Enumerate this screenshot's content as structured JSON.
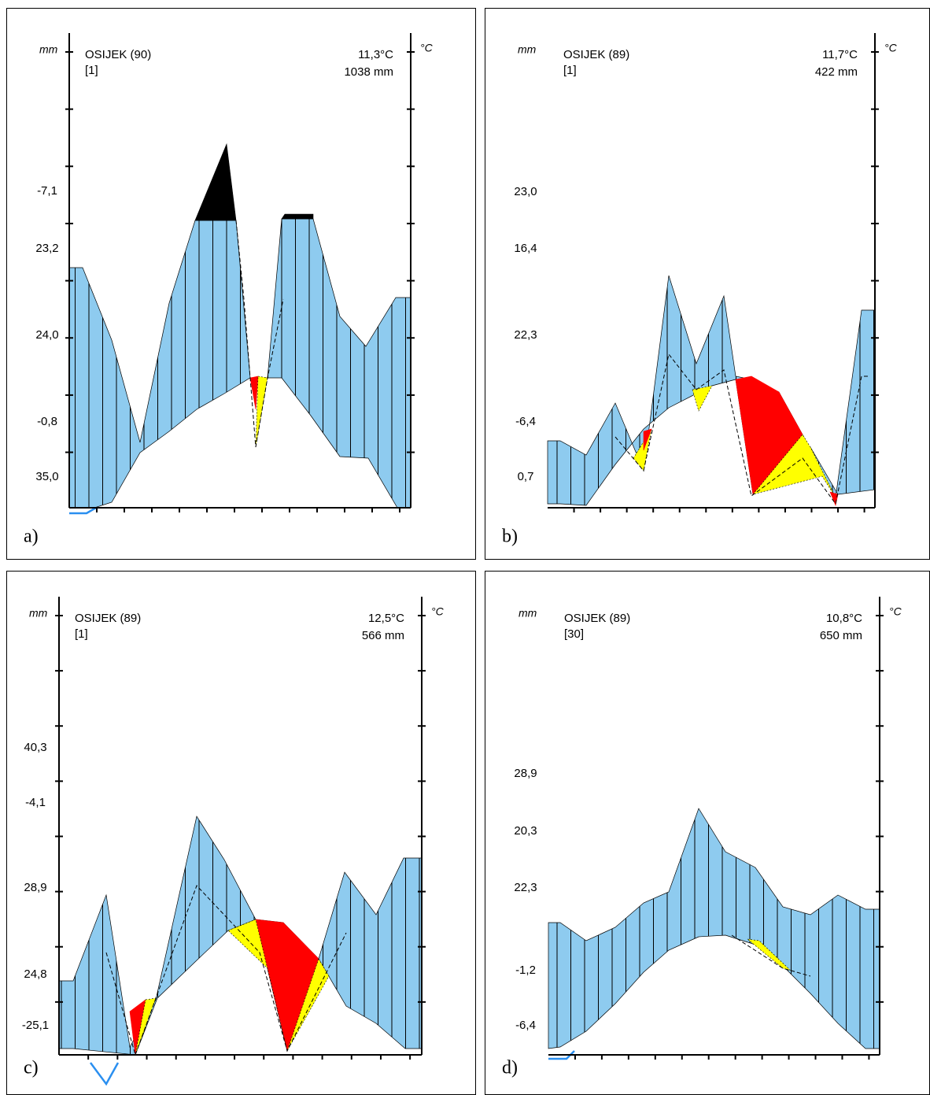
{
  "panels": [
    {
      "label": "a)",
      "unit_left": "mm",
      "unit_right": "°C",
      "station": "OSIJEK (90)",
      "note": "[1]",
      "temperature": "11,3°C",
      "precipitation": "1038 mm",
      "tick_labels": [
        "-7,1",
        "23,2",
        "24,0",
        "-0,8",
        "35,0"
      ]
    },
    {
      "label": "b)",
      "unit_left": "mm",
      "unit_right": "°C",
      "station": "OSIJEK (89)",
      "note": "[1]",
      "temperature": "11,7°C",
      "precipitation": "422 mm",
      "tick_labels": [
        "23,0",
        "16,4",
        "22,3",
        "-6,4",
        "0,7"
      ]
    },
    {
      "label": "c)",
      "unit_left": "mm",
      "unit_right": "°C",
      "station": "OSIJEK (89)",
      "note": "[1]",
      "temperature": "12,5°C",
      "precipitation": "566 mm",
      "tick_labels": [
        "40,3",
        "-4,1",
        "28,9",
        "24,8",
        "-25,1"
      ]
    },
    {
      "label": "d)",
      "unit_left": "mm",
      "unit_right": "°C",
      "station": "OSIJEK (89)",
      "note": "[30]",
      "temperature": "10,8°C",
      "precipitation": "650 mm",
      "tick_labels": [
        "28,9",
        "20,3",
        "22,3",
        "-1,2",
        "-6,4"
      ]
    }
  ]
}
